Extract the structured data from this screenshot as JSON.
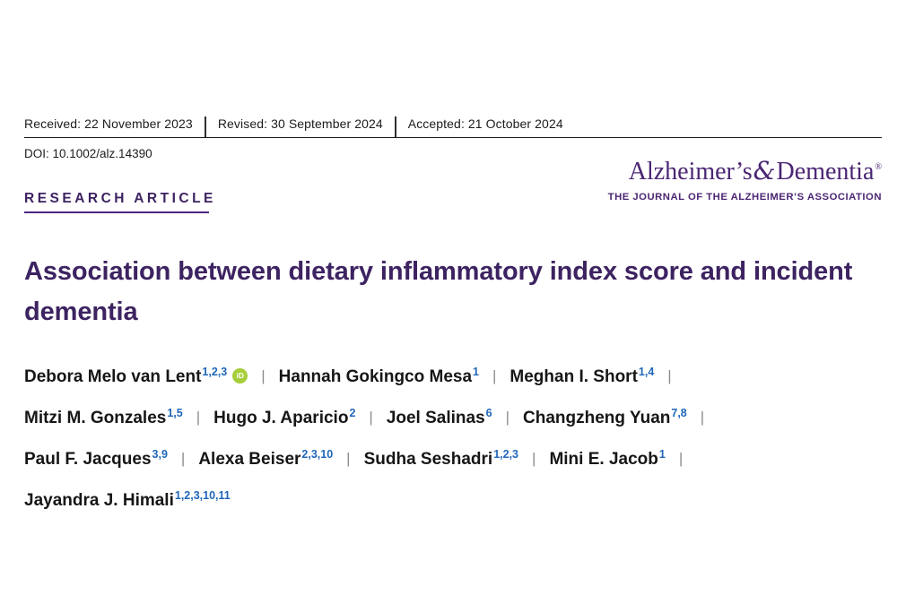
{
  "dates": {
    "received": "Received: 22 November 2023",
    "revised": "Revised: 30 September 2024",
    "accepted": "Accepted: 21 October 2024"
  },
  "doi": "DOI: 10.1002/alz.14390",
  "journal": {
    "name_pre": "Alzheimer’s",
    "amp": "&",
    "name_post": "Dementia",
    "reg": "®",
    "tagline": "THE JOURNAL OF THE ALZHEIMER’S ASSOCIATION"
  },
  "article": {
    "kicker": "RESEARCH ARTICLE",
    "title": "Association between dietary inflammatory index score and incident dementia"
  },
  "authors": [
    {
      "name": "Debora Melo van Lent",
      "sup": "1,2,3",
      "orcid": true,
      "orcid_label": "iD",
      "break_after": false
    },
    {
      "name": "Hannah Gokingco Mesa",
      "sup": "1",
      "orcid": false,
      "break_after": false
    },
    {
      "name": "Meghan I. Short",
      "sup": "1,4",
      "orcid": false,
      "break_after": true
    },
    {
      "name": "Mitzi M. Gonzales",
      "sup": "1,5",
      "orcid": false,
      "break_after": false
    },
    {
      "name": "Hugo J. Aparicio",
      "sup": "2",
      "orcid": false,
      "break_after": false
    },
    {
      "name": "Joel Salinas",
      "sup": "6",
      "orcid": false,
      "break_after": false
    },
    {
      "name": "Changzheng Yuan",
      "sup": "7,8",
      "orcid": false,
      "break_after": true
    },
    {
      "name": "Paul F. Jacques",
      "sup": "3,9",
      "orcid": false,
      "break_after": false
    },
    {
      "name": "Alexa Beiser",
      "sup": "2,3,10",
      "orcid": false,
      "break_after": false
    },
    {
      "name": "Sudha Seshadri",
      "sup": "1,2,3",
      "orcid": false,
      "break_after": false
    },
    {
      "name": "Mini E. Jacob",
      "sup": "1",
      "orcid": false,
      "break_after": true
    },
    {
      "name": "Jayandra J. Himali",
      "sup": "1,2,3,10,11",
      "orcid": false,
      "break_after": false
    }
  ],
  "separator_glyph": "|",
  "colors": {
    "brand_purple": "#4b2673",
    "title_purple": "#3d2361",
    "underline_purple": "#4f2683",
    "superscript_blue": "#1f66b8",
    "orcid_green": "#a6ce39",
    "separator_gray": "#8c8c8c",
    "text_black": "#1c1c1c"
  }
}
